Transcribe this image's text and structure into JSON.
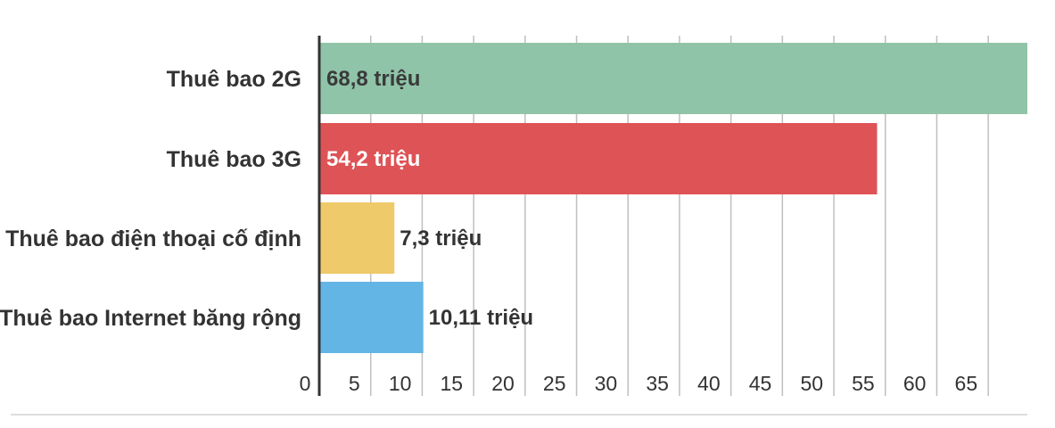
{
  "chart_data": {
    "type": "bar",
    "orientation": "horizontal",
    "categories": [
      "Thuê bao 2G",
      "Thuê bao 3G",
      "Thuê bao điện thoại cố định",
      "Thuê bao Internet băng rộng"
    ],
    "values": [
      68.8,
      54.2,
      7.3,
      10.11
    ],
    "value_labels": [
      "68,8 triệu",
      "54,2 triệu",
      "7,3 triệu",
      "10,11 triệu"
    ],
    "colors": [
      "#8fc4a8",
      "#de5356",
      "#efca6a",
      "#62b5e5"
    ],
    "value_label_colors": [
      "#3a3a3a",
      "#ffffff",
      "#333333",
      "#333333"
    ],
    "xlim": [
      0,
      68.8
    ],
    "ticks": [
      0,
      5,
      10,
      15,
      20,
      25,
      30,
      35,
      40,
      45,
      50,
      55,
      60,
      65
    ],
    "tick_labels": [
      "0",
      "5",
      "10",
      "15",
      "20",
      "25",
      "30",
      "35",
      "40",
      "45",
      "50",
      "55",
      "60",
      "65"
    ],
    "grid": true,
    "title": "",
    "xlabel": "",
    "ylabel": ""
  }
}
